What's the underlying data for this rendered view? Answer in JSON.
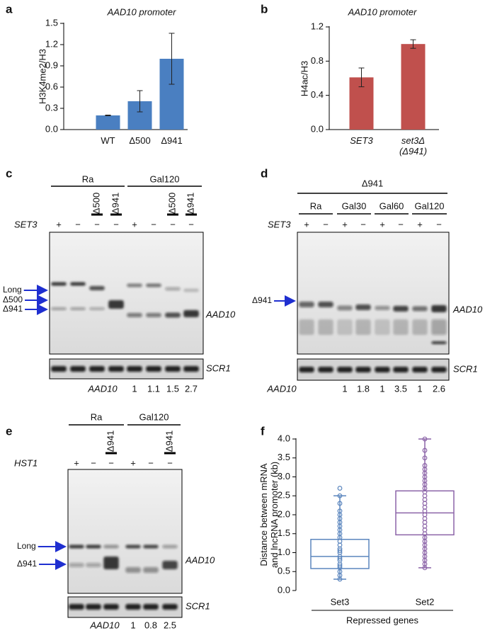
{
  "chart_data": [
    {
      "type": "bar",
      "panel": "a",
      "title": "AAD10 promoter",
      "ylabel": "H3K4me2/H3",
      "categories": [
        "WT",
        "Δ500",
        "Δ941"
      ],
      "values": [
        0.2,
        0.4,
        1.0
      ],
      "errors": [
        0.005,
        0.15,
        0.36
      ],
      "color": "#4a7fc1",
      "ylim": [
        0,
        1.5
      ],
      "yticks": [
        {
          "value": 0,
          "label": "0.0"
        },
        0.3,
        0.6,
        0.9,
        1.2,
        1.5
      ]
    },
    {
      "type": "bar",
      "panel": "b",
      "title": "AAD10 promoter",
      "ylabel": "H4ac/H3",
      "categories": [
        "SET3",
        "set3Δ\n(Δ941)"
      ],
      "values": [
        0.61,
        1.0
      ],
      "errors": [
        0.11,
        0.05
      ],
      "color": "#c0504d",
      "ylim": [
        0,
        1.2
      ],
      "yticks": [
        {
          "value": 0,
          "label": "0.0"
        },
        0.4,
        0.8,
        1.2
      ]
    },
    {
      "type": "box",
      "panel": "f",
      "ylabel": "Distance between mRNA\nand lncRNA promoter (kb)",
      "xlabel": "Repressed genes",
      "ylim": [
        0,
        4
      ],
      "yticks": [
        {
          "value": 0,
          "label": "0.0"
        },
        0.5,
        {
          "value": 1,
          "label": "1.0"
        },
        1.5,
        {
          "value": 2,
          "label": "2.0"
        },
        2.5,
        {
          "value": 3,
          "label": "3.0"
        },
        3.5,
        {
          "value": 4,
          "label": "4.0"
        }
      ],
      "series": [
        {
          "name": "Set3",
          "color": "#5b86be",
          "min": 0.3,
          "q1": 0.58,
          "median": 0.9,
          "q3": 1.35,
          "max": 2.5,
          "points": [
            0.3,
            0.4,
            0.5,
            0.6,
            0.65,
            0.7,
            0.8,
            0.85,
            0.9,
            1.0,
            1.05,
            1.1,
            1.2,
            1.3,
            1.4,
            1.5,
            1.6,
            1.7,
            1.8,
            1.9,
            2.0,
            2.1,
            2.3,
            2.5,
            2.7
          ]
        },
        {
          "name": "Set2",
          "color": "#8c64a8",
          "min": 0.6,
          "q1": 1.47,
          "median": 2.05,
          "q3": 2.63,
          "max": 4.0,
          "points": [
            0.6,
            0.7,
            0.8,
            0.9,
            1.0,
            1.1,
            1.2,
            1.3,
            1.4,
            1.5,
            1.6,
            1.7,
            1.8,
            1.9,
            2.0,
            2.1,
            2.2,
            2.3,
            2.4,
            2.5,
            2.6,
            2.7,
            2.8,
            2.9,
            3.0,
            3.1,
            3.2,
            3.3,
            3.5,
            3.7,
            4.0
          ]
        }
      ]
    }
  ],
  "gels": [
    {
      "panel": "c",
      "groups": [
        "Ra",
        "Gal120"
      ],
      "row_label": "SET3",
      "lanes": [
        {
          "sign": "+"
        },
        {
          "sign": "−"
        },
        {
          "sign": "−",
          "promoter": "Δ500"
        },
        {
          "sign": "−",
          "promoter": "Δ941"
        },
        {
          "sign": "+"
        },
        {
          "sign": "−"
        },
        {
          "sign": "−",
          "promoter": "Δ500"
        },
        {
          "sign": "−",
          "promoter": "Δ941"
        }
      ],
      "markers": [
        "Long",
        "Δ500",
        "Δ941"
      ],
      "band_label": "AAD10",
      "loading_label": "SCR1",
      "quant_label": "AAD10",
      "quant": [
        null,
        null,
        null,
        null,
        1,
        1.1,
        1.5,
        2.7
      ]
    },
    {
      "panel": "d",
      "header": "Δ941",
      "groups": [
        "Ra",
        "Gal30",
        "Gal60",
        "Gal120"
      ],
      "row_label": "SET3",
      "lanes": [
        {
          "sign": "+"
        },
        {
          "sign": "−"
        },
        {
          "sign": "+"
        },
        {
          "sign": "−"
        },
        {
          "sign": "+"
        },
        {
          "sign": "−"
        },
        {
          "sign": "+"
        },
        {
          "sign": "−"
        }
      ],
      "markers": [
        "Δ941"
      ],
      "band_label": "AAD10",
      "loading_label": "SCR1",
      "quant_label": "AAD10",
      "quant": [
        null,
        null,
        1,
        1.8,
        1,
        3.5,
        1,
        2.6
      ]
    },
    {
      "panel": "e",
      "groups": [
        "Ra",
        "Gal120"
      ],
      "row_label": "HST1",
      "lanes": [
        {
          "sign": "+"
        },
        {
          "sign": "−"
        },
        {
          "sign": "−",
          "promoter": "Δ941"
        },
        {
          "sign": "+"
        },
        {
          "sign": "−"
        },
        {
          "sign": "−",
          "promoter": "Δ941"
        }
      ],
      "markers": [
        "Long",
        "Δ941"
      ],
      "band_label": "AAD10",
      "loading_label": "SCR1",
      "quant_label": "AAD10",
      "quant": [
        null,
        null,
        null,
        1,
        0.8,
        2.5
      ]
    }
  ]
}
